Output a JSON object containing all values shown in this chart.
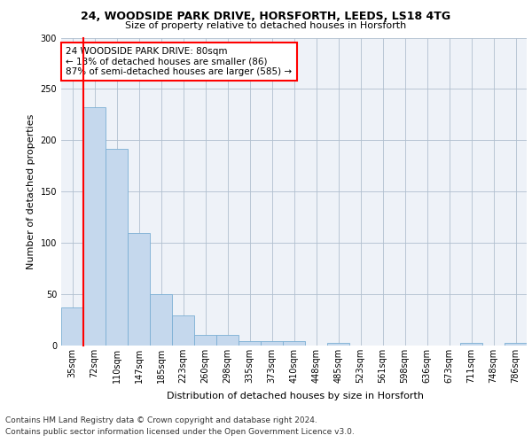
{
  "title1": "24, WOODSIDE PARK DRIVE, HORSFORTH, LEEDS, LS18 4TG",
  "title2": "Size of property relative to detached houses in Horsforth",
  "xlabel": "Distribution of detached houses by size in Horsforth",
  "ylabel": "Number of detached properties",
  "bar_color": "#c5d8ed",
  "bar_edge_color": "#7bafd4",
  "annotation_box_text": "24 WOODSIDE PARK DRIVE: 80sqm\n← 13% of detached houses are smaller (86)\n87% of semi-detached houses are larger (585) →",
  "categories": [
    "35sqm",
    "72sqm",
    "110sqm",
    "147sqm",
    "185sqm",
    "223sqm",
    "260sqm",
    "298sqm",
    "335sqm",
    "373sqm",
    "410sqm",
    "448sqm",
    "485sqm",
    "523sqm",
    "561sqm",
    "598sqm",
    "636sqm",
    "673sqm",
    "711sqm",
    "748sqm",
    "786sqm"
  ],
  "values": [
    37,
    232,
    192,
    110,
    50,
    29,
    10,
    10,
    4,
    4,
    4,
    0,
    3,
    0,
    0,
    0,
    0,
    0,
    3,
    0,
    3
  ],
  "footer1": "Contains HM Land Registry data © Crown copyright and database right 2024.",
  "footer2": "Contains public sector information licensed under the Open Government Licence v3.0.",
  "ylim": [
    0,
    300
  ],
  "yticks": [
    0,
    50,
    100,
    150,
    200,
    250,
    300
  ],
  "property_bin_index": 1,
  "red_line_x": 0.5,
  "background_color": "#eef2f8",
  "grid_color": "#b0bfcf",
  "bar_width": 1.0,
  "title1_fontsize": 9,
  "title2_fontsize": 8,
  "ylabel_fontsize": 8,
  "xlabel_fontsize": 8,
  "tick_fontsize": 7,
  "annotation_fontsize": 7.5,
  "footer_fontsize": 6.5
}
